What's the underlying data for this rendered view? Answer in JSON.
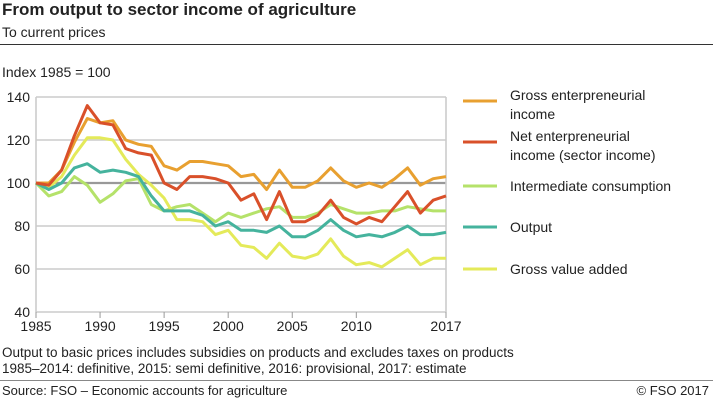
{
  "title": "From output to sector income of agriculture",
  "subtitle": "To current prices",
  "notes": [
    "Output to basic prices includes subsidies on products and excludes taxes on products",
    "1985–2014: definitive, 2015: semi definitive, 2016: provisional, 2017: estimate"
  ],
  "source": "Source: FSO – Economic accounts for agriculture",
  "copyright": "© FSO  2017",
  "chart_data": {
    "type": "line",
    "ylabel": "Index 1985 = 100",
    "ylim": [
      40,
      140
    ],
    "yticks": [
      "40",
      "60",
      "80",
      "100",
      "120",
      "140"
    ],
    "xlim": [
      1985,
      2017
    ],
    "xticks": [
      "1985",
      "1990",
      "1995",
      "2000",
      "2005",
      "2010",
      "2017"
    ],
    "grid": true,
    "legend": "right",
    "x": [
      1985,
      1986,
      1987,
      1988,
      1989,
      1990,
      1991,
      1992,
      1993,
      1994,
      1995,
      1996,
      1997,
      1998,
      1999,
      2000,
      2001,
      2002,
      2003,
      2004,
      2005,
      2006,
      2007,
      2008,
      2009,
      2010,
      2011,
      2012,
      2013,
      2014,
      2015,
      2016,
      2017
    ],
    "series": [
      {
        "name": "Gross enterpreneurial income",
        "legend_lines": [
          "Gross enterpreneurial",
          "income"
        ],
        "color": "#e8a030",
        "values": [
          100,
          100,
          106,
          119,
          130,
          128,
          129,
          120,
          118,
          117,
          108,
          106,
          110,
          110,
          109,
          108,
          103,
          104,
          97,
          106,
          98,
          98,
          101,
          107,
          101,
          98,
          100,
          98,
          102,
          107,
          99,
          102,
          103
        ]
      },
      {
        "name": "Net enterpreneurial income (sector income)",
        "legend_lines": [
          "Net enterpreneurial",
          "income (sector income)"
        ],
        "color": "#d9502a",
        "values": [
          100,
          99,
          106,
          122,
          136,
          128,
          127,
          116,
          114,
          113,
          100,
          97,
          103,
          103,
          102,
          100,
          92,
          95,
          83,
          96,
          82,
          82,
          85,
          92,
          84,
          81,
          84,
          82,
          89,
          96,
          86,
          92,
          94
        ]
      },
      {
        "name": "Intermediate consumption",
        "legend_lines": [
          "Intermediate consumption"
        ],
        "color": "#b5e26a",
        "values": [
          100,
          94,
          96,
          103,
          99,
          91,
          95,
          101,
          102,
          90,
          87,
          89,
          90,
          86,
          82,
          86,
          84,
          86,
          88,
          89,
          84,
          84,
          86,
          90,
          88,
          86,
          86,
          87,
          87,
          89,
          88,
          87,
          87
        ]
      },
      {
        "name": "Output",
        "legend_lines": [
          "Output"
        ],
        "color": "#45b39d",
        "values": [
          100,
          97,
          100,
          107,
          109,
          105,
          106,
          105,
          103,
          94,
          87,
          87,
          87,
          85,
          80,
          82,
          78,
          78,
          77,
          80,
          75,
          75,
          78,
          83,
          78,
          75,
          76,
          75,
          77,
          80,
          76,
          76,
          77
        ]
      },
      {
        "name": "Gross value added",
        "legend_lines": [
          "Gross value added"
        ],
        "color": "#e4ea5a",
        "values": [
          100,
          98,
          103,
          113,
          121,
          121,
          120,
          111,
          104,
          99,
          93,
          83,
          83,
          82,
          76,
          78,
          71,
          70,
          65,
          72,
          66,
          65,
          67,
          74,
          66,
          62,
          63,
          61,
          65,
          69,
          62,
          65,
          65
        ]
      }
    ]
  }
}
